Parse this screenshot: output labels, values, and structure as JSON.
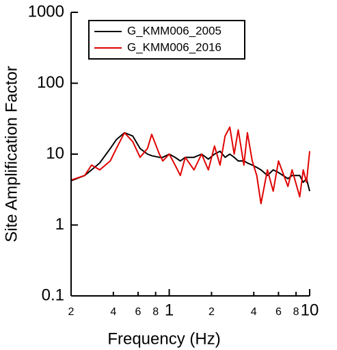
{
  "chart_data": {
    "type": "line",
    "x_label": "Frequency (Hz)",
    "y_label": "Site Amplification Factor",
    "xscale": "log",
    "yscale": "log",
    "xlim": [
      0.2,
      10
    ],
    "ylim": [
      0.1,
      1000
    ],
    "xticks": [
      {
        "value": 0.2,
        "label": "2"
      },
      {
        "value": 0.4,
        "label": "4"
      },
      {
        "value": 0.6,
        "label": "6"
      },
      {
        "value": 0.8,
        "label": "8"
      },
      1,
      2,
      4,
      6,
      8,
      10
    ],
    "yticks": [
      0.1,
      1,
      10,
      100,
      1000
    ],
    "legend": "upper left",
    "x": [
      0.2,
      0.25,
      0.28,
      0.32,
      0.38,
      0.42,
      0.48,
      0.55,
      0.62,
      0.7,
      0.75,
      0.85,
      0.9,
      1.0,
      1.1,
      1.2,
      1.3,
      1.5,
      1.7,
      1.9,
      2.1,
      2.3,
      2.5,
      2.7,
      2.9,
      3.1,
      3.4,
      3.6,
      3.9,
      4.2,
      4.5,
      5,
      5.5,
      6,
      7,
      7.5,
      8.5,
      9,
      9.5,
      10
    ],
    "series": [
      {
        "name": "G_KMM006_2005",
        "color": "#000000",
        "values": [
          4.2,
          5,
          6,
          7.5,
          12,
          16,
          20,
          18,
          12,
          10,
          9.5,
          9,
          9,
          10,
          9,
          8,
          9,
          9,
          10,
          8.5,
          10,
          11,
          9,
          10,
          9,
          8,
          8,
          7.5,
          7,
          6.5,
          6,
          5,
          6,
          5.5,
          4.5,
          5,
          5,
          4,
          4.5,
          3
        ]
      },
      {
        "name": "G_KMM006_2016",
        "color": "#e00000",
        "values": [
          4.3,
          5,
          7,
          6,
          8,
          12,
          20,
          15,
          9,
          12,
          19,
          10,
          8,
          10,
          7,
          5,
          9,
          6,
          10,
          6,
          13,
          7,
          18,
          24,
          10,
          22,
          7,
          20,
          8,
          5,
          2,
          6,
          3,
          8,
          3.5,
          6,
          2.5,
          6,
          4,
          11
        ]
      }
    ]
  }
}
